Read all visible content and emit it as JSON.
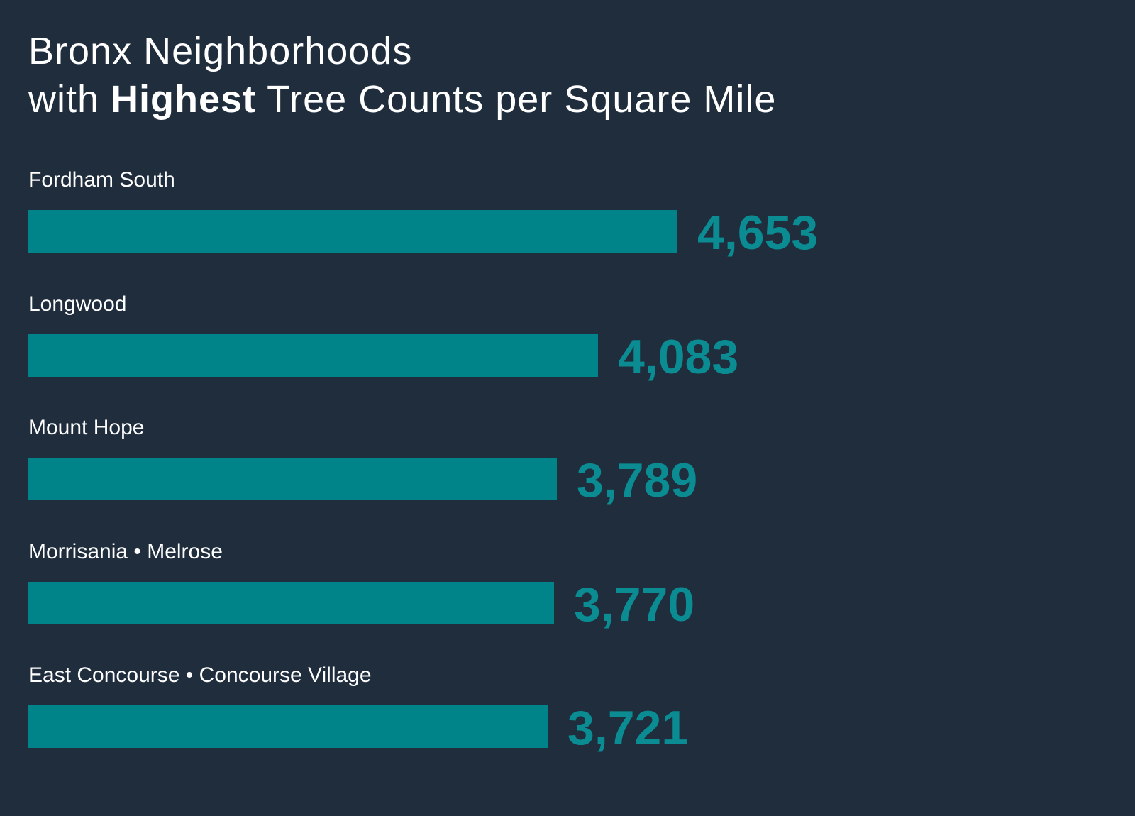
{
  "title": {
    "line1": "Bronx Neighborhoods",
    "line2_pre": "with ",
    "line2_bold": "Highest",
    "line2_post": " Tree Counts per Square Mile"
  },
  "colors": {
    "background": "#1f2d3d",
    "bar": "#008489",
    "value_text": "#0a8c92",
    "label_text": "#ffffff"
  },
  "chart_data": {
    "type": "bar",
    "orientation": "horizontal",
    "title": "Bronx Neighborhoods with Highest Tree Counts per Square Mile",
    "xlabel": "",
    "ylabel": "",
    "grid": false,
    "legend": "none",
    "categories": [
      "Fordham South",
      "Longwood",
      "Mount Hope",
      "Morrisania • Melrose",
      "East Concourse • Concourse Village"
    ],
    "values": [
      4653,
      4083,
      3789,
      3770,
      3721
    ],
    "value_labels": [
      "4,653",
      "4,083",
      "3,789",
      "3,770",
      "3,721"
    ]
  }
}
